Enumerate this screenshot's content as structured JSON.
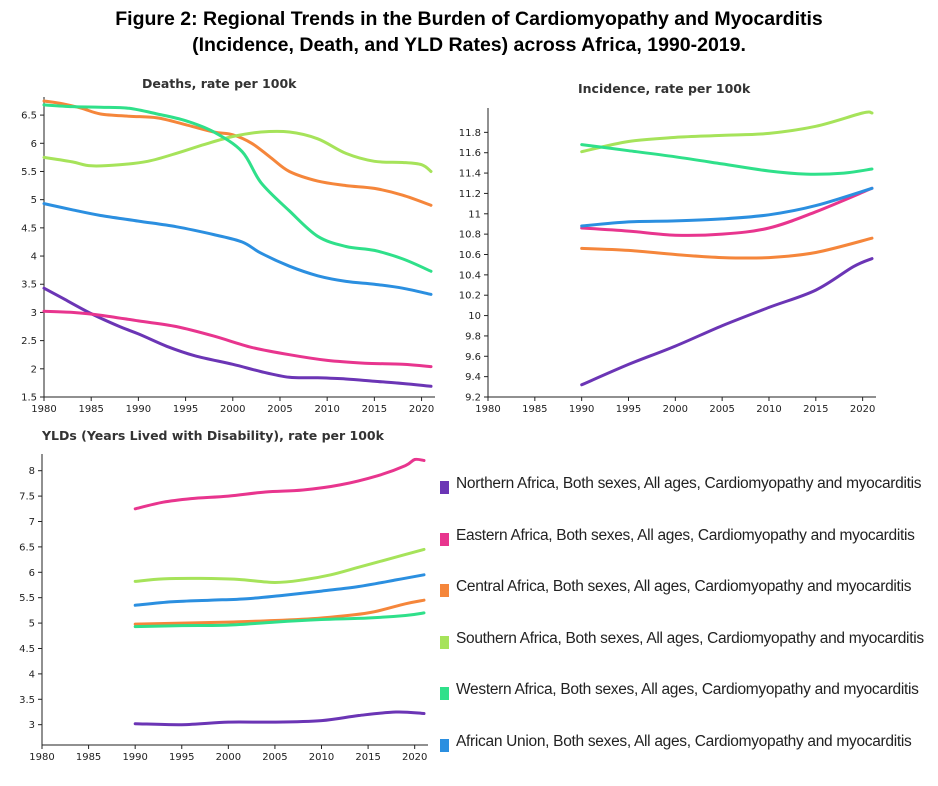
{
  "figure": {
    "title_line1": "Figure 2: Regional Trends in the Burden of Cardiomyopathy and Myocarditis",
    "title_line2": "(Incidence, Death, and YLD Rates) across Africa, 1990-2019."
  },
  "legend": {
    "items": [
      {
        "label": "Northern Africa, Both sexes, All ages, Cardiomyopathy and myocarditis",
        "color": "#6b35b5"
      },
      {
        "label": "Eastern Africa, Both sexes, All ages, Cardiomyopathy and myocarditis",
        "color": "#e8358e"
      },
      {
        "label": "Central Africa, Both sexes, All ages, Cardiomyopathy and myocarditis",
        "color": "#f5863b"
      },
      {
        "label": "Southern Africa, Both sexes, All ages, Cardiomyopathy and myocarditis",
        "color": "#a6e35a"
      },
      {
        "label": "Western Africa, Both sexes, All ages, Cardiomyopathy and myocarditis",
        "color": "#2fe08a"
      },
      {
        "label": "African Union, Both sexes, All ages, Cardiomyopathy and myocarditis",
        "color": "#2b8fe0"
      }
    ]
  },
  "chart_data": [
    {
      "type": "line",
      "title": "Deaths, rate per 100k",
      "xlabel": "",
      "ylabel": "",
      "xlim": [
        1980,
        2021
      ],
      "ylim": [
        1.5,
        6.75
      ],
      "x_ticks": [
        "1980",
        "1985",
        "1990",
        "1995",
        "2000",
        "2005",
        "2010",
        "2015",
        "2020"
      ],
      "y_ticks": [
        "1.5",
        "2",
        "2.5",
        "3",
        "3.5",
        "4",
        "4.5",
        "5",
        "5.5",
        "6",
        "6.5"
      ],
      "series": [
        {
          "name": "Northern Africa",
          "color": "#6b35b5",
          "points": [
            [
              1980,
              3.43
            ],
            [
              1982,
              3.25
            ],
            [
              1985,
              2.98
            ],
            [
              1988,
              2.75
            ],
            [
              1990,
              2.62
            ],
            [
              1993,
              2.4
            ],
            [
              1996,
              2.23
            ],
            [
              2000,
              2.08
            ],
            [
              2003,
              1.95
            ],
            [
              2006,
              1.85
            ],
            [
              2009,
              1.84
            ],
            [
              2012,
              1.82
            ],
            [
              2015,
              1.78
            ],
            [
              2018,
              1.74
            ],
            [
              2021,
              1.69
            ]
          ]
        },
        {
          "name": "Eastern Africa",
          "color": "#e8358e",
          "points": [
            [
              1980,
              3.02
            ],
            [
              1983,
              3.0
            ],
            [
              1986,
              2.95
            ],
            [
              1990,
              2.85
            ],
            [
              1994,
              2.75
            ],
            [
              1998,
              2.58
            ],
            [
              2002,
              2.38
            ],
            [
              2006,
              2.25
            ],
            [
              2010,
              2.15
            ],
            [
              2014,
              2.1
            ],
            [
              2018,
              2.08
            ],
            [
              2021,
              2.04
            ]
          ]
        },
        {
          "name": "Central Africa",
          "color": "#f5863b",
          "points": [
            [
              1980,
              6.75
            ],
            [
              1982,
              6.7
            ],
            [
              1984,
              6.62
            ],
            [
              1986,
              6.52
            ],
            [
              1989,
              6.48
            ],
            [
              1992,
              6.45
            ],
            [
              1995,
              6.33
            ],
            [
              1998,
              6.2
            ],
            [
              2000,
              6.15
            ],
            [
              2002,
              6.0
            ],
            [
              2004,
              5.75
            ],
            [
              2006,
              5.5
            ],
            [
              2009,
              5.33
            ],
            [
              2012,
              5.25
            ],
            [
              2015,
              5.2
            ],
            [
              2018,
              5.08
            ],
            [
              2021,
              4.9
            ]
          ]
        },
        {
          "name": "Southern Africa",
          "color": "#a6e35a",
          "points": [
            [
              1980,
              5.75
            ],
            [
              1983,
              5.67
            ],
            [
              1985,
              5.6
            ],
            [
              1988,
              5.62
            ],
            [
              1991,
              5.68
            ],
            [
              1994,
              5.82
            ],
            [
              1997,
              5.98
            ],
            [
              2000,
              6.12
            ],
            [
              2003,
              6.2
            ],
            [
              2006,
              6.2
            ],
            [
              2009,
              6.08
            ],
            [
              2012,
              5.82
            ],
            [
              2015,
              5.68
            ],
            [
              2018,
              5.66
            ],
            [
              2020,
              5.62
            ],
            [
              2021,
              5.5
            ]
          ]
        },
        {
          "name": "Western Africa",
          "color": "#2fe08a",
          "points": [
            [
              1980,
              6.68
            ],
            [
              1983,
              6.65
            ],
            [
              1986,
              6.64
            ],
            [
              1989,
              6.62
            ],
            [
              1992,
              6.52
            ],
            [
              1995,
              6.4
            ],
            [
              1998,
              6.2
            ],
            [
              2001,
              5.85
            ],
            [
              2003,
              5.3
            ],
            [
              2006,
              4.8
            ],
            [
              2009,
              4.35
            ],
            [
              2012,
              4.17
            ],
            [
              2015,
              4.1
            ],
            [
              2018,
              3.95
            ],
            [
              2021,
              3.73
            ]
          ]
        },
        {
          "name": "African Union",
          "color": "#2b8fe0",
          "points": [
            [
              1980,
              4.93
            ],
            [
              1983,
              4.82
            ],
            [
              1986,
              4.72
            ],
            [
              1990,
              4.62
            ],
            [
              1994,
              4.52
            ],
            [
              1998,
              4.38
            ],
            [
              2001,
              4.25
            ],
            [
              2003,
              4.05
            ],
            [
              2006,
              3.82
            ],
            [
              2009,
              3.65
            ],
            [
              2012,
              3.55
            ],
            [
              2015,
              3.5
            ],
            [
              2018,
              3.43
            ],
            [
              2021,
              3.32
            ]
          ]
        }
      ]
    },
    {
      "type": "line",
      "title": "Incidence, rate per 100k",
      "xlabel": "",
      "ylabel": "",
      "xlim": [
        1980,
        2021
      ],
      "ylim": [
        9.2,
        12.0
      ],
      "x_ticks": [
        "1980",
        "1985",
        "1990",
        "1995",
        "2000",
        "2005",
        "2010",
        "2015",
        "2020"
      ],
      "y_ticks": [
        "9.2",
        "9.4",
        "9.6",
        "9.8",
        "10",
        "10.2",
        "10.4",
        "10.6",
        "10.8",
        "11",
        "11.2",
        "11.4",
        "11.6",
        "11.8"
      ],
      "series": [
        {
          "name": "Northern Africa",
          "color": "#6b35b5",
          "points": [
            [
              1990,
              9.32
            ],
            [
              1995,
              9.52
            ],
            [
              2000,
              9.7
            ],
            [
              2005,
              9.9
            ],
            [
              2010,
              10.08
            ],
            [
              2015,
              10.25
            ],
            [
              2019,
              10.48
            ],
            [
              2021,
              10.56
            ]
          ]
        },
        {
          "name": "Eastern Africa",
          "color": "#e8358e",
          "points": [
            [
              1990,
              10.86
            ],
            [
              1995,
              10.83
            ],
            [
              2000,
              10.79
            ],
            [
              2005,
              10.8
            ],
            [
              2010,
              10.86
            ],
            [
              2015,
              11.02
            ],
            [
              2021,
              11.25
            ]
          ]
        },
        {
          "name": "Central Africa",
          "color": "#f5863b",
          "points": [
            [
              1990,
              10.66
            ],
            [
              1995,
              10.64
            ],
            [
              2000,
              10.6
            ],
            [
              2005,
              10.57
            ],
            [
              2010,
              10.57
            ],
            [
              2015,
              10.62
            ],
            [
              2021,
              10.76
            ]
          ]
        },
        {
          "name": "Southern Africa",
          "color": "#a6e35a",
          "points": [
            [
              1990,
              11.61
            ],
            [
              1995,
              11.71
            ],
            [
              2000,
              11.75
            ],
            [
              2005,
              11.77
            ],
            [
              2010,
              11.79
            ],
            [
              2015,
              11.86
            ],
            [
              2020,
              11.99
            ],
            [
              2021,
              11.99
            ]
          ]
        },
        {
          "name": "Western Africa",
          "color": "#2fe08a",
          "points": [
            [
              1990,
              11.68
            ],
            [
              1995,
              11.62
            ],
            [
              2000,
              11.56
            ],
            [
              2005,
              11.49
            ],
            [
              2010,
              11.42
            ],
            [
              2014,
              11.39
            ],
            [
              2018,
              11.4
            ],
            [
              2021,
              11.44
            ]
          ]
        },
        {
          "name": "African Union",
          "color": "#2b8fe0",
          "points": [
            [
              1990,
              10.88
            ],
            [
              1995,
              10.92
            ],
            [
              2000,
              10.93
            ],
            [
              2005,
              10.95
            ],
            [
              2010,
              10.99
            ],
            [
              2015,
              11.08
            ],
            [
              2021,
              11.25
            ]
          ]
        }
      ]
    },
    {
      "type": "line",
      "title": "YLDs (Years Lived with Disability), rate per 100k",
      "xlabel": "",
      "ylabel": "",
      "xlim": [
        1980,
        2021
      ],
      "ylim": [
        2.6,
        8.25
      ],
      "x_ticks": [
        "1980",
        "1985",
        "1990",
        "1995",
        "2000",
        "2005",
        "2010",
        "2015",
        "2020"
      ],
      "y_ticks": [
        "3",
        "3.5",
        "4",
        "4.5",
        "5",
        "5.5",
        "6",
        "6.5",
        "7",
        "7.5",
        "8"
      ],
      "series": [
        {
          "name": "Northern Africa",
          "color": "#6b35b5",
          "points": [
            [
              1990,
              3.02
            ],
            [
              1995,
              3.0
            ],
            [
              2000,
              3.05
            ],
            [
              2005,
              3.05
            ],
            [
              2010,
              3.08
            ],
            [
              2014,
              3.18
            ],
            [
              2018,
              3.25
            ],
            [
              2021,
              3.22
            ]
          ]
        },
        {
          "name": "Eastern Africa",
          "color": "#e8358e",
          "points": [
            [
              1990,
              7.25
            ],
            [
              1993,
              7.38
            ],
            [
              1996,
              7.45
            ],
            [
              2000,
              7.5
            ],
            [
              2004,
              7.58
            ],
            [
              2008,
              7.62
            ],
            [
              2012,
              7.72
            ],
            [
              2016,
              7.9
            ],
            [
              2019,
              8.1
            ],
            [
              2020,
              8.22
            ],
            [
              2021,
              8.2
            ]
          ]
        },
        {
          "name": "Central Africa",
          "color": "#f5863b",
          "points": [
            [
              1990,
              4.98
            ],
            [
              1995,
              5.0
            ],
            [
              2000,
              5.02
            ],
            [
              2005,
              5.05
            ],
            [
              2010,
              5.1
            ],
            [
              2015,
              5.2
            ],
            [
              2019,
              5.38
            ],
            [
              2021,
              5.45
            ]
          ]
        },
        {
          "name": "Southern Africa",
          "color": "#a6e35a",
          "points": [
            [
              1990,
              5.82
            ],
            [
              1993,
              5.87
            ],
            [
              1997,
              5.88
            ],
            [
              2001,
              5.86
            ],
            [
              2005,
              5.8
            ],
            [
              2008,
              5.85
            ],
            [
              2011,
              5.95
            ],
            [
              2014,
              6.1
            ],
            [
              2018,
              6.3
            ],
            [
              2021,
              6.45
            ]
          ]
        },
        {
          "name": "Western Africa",
          "color": "#2fe08a",
          "points": [
            [
              1990,
              4.93
            ],
            [
              1995,
              4.95
            ],
            [
              2000,
              4.96
            ],
            [
              2005,
              5.02
            ],
            [
              2010,
              5.07
            ],
            [
              2015,
              5.1
            ],
            [
              2019,
              5.15
            ],
            [
              2021,
              5.2
            ]
          ]
        },
        {
          "name": "African Union",
          "color": "#2b8fe0",
          "points": [
            [
              1990,
              5.35
            ],
            [
              1994,
              5.42
            ],
            [
              1998,
              5.45
            ],
            [
              2002,
              5.48
            ],
            [
              2006,
              5.55
            ],
            [
              2010,
              5.63
            ],
            [
              2014,
              5.72
            ],
            [
              2018,
              5.85
            ],
            [
              2021,
              5.95
            ]
          ]
        }
      ]
    }
  ]
}
